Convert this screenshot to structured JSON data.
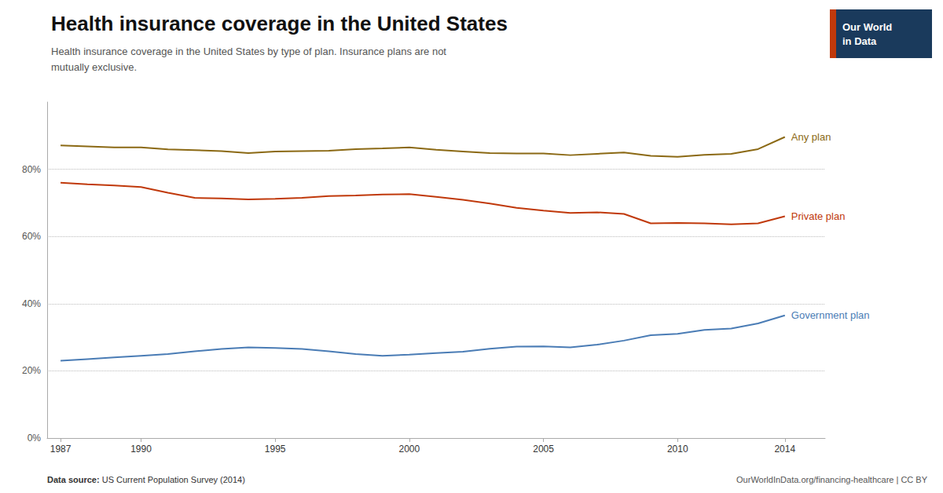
{
  "chart_data": {
    "type": "line",
    "title": "Health insurance coverage in the United States",
    "subtitle": "Health insurance coverage in the United States by type of plan. Insurance plans are not\nmutually exclusive.",
    "annotations": [
      "Data source: US Current Population Survey (2014)",
      "OurWorldInData.org/financing-healthcare | CC BY",
      "Our World\nin Data"
    ],
    "x": [
      1987,
      1988,
      1989,
      1990,
      1991,
      1992,
      1993,
      1994,
      1995,
      1996,
      1997,
      1998,
      1999,
      2000,
      2001,
      2002,
      2003,
      2004,
      2005,
      2006,
      2007,
      2008,
      2009,
      2010,
      2011,
      2012,
      2013,
      2014
    ],
    "series": [
      {
        "name": "Any plan",
        "color": "#8B6914",
        "values": [
          87.1,
          86.8,
          86.5,
          86.5,
          85.9,
          85.7,
          85.4,
          84.8,
          85.3,
          85.4,
          85.5,
          86.0,
          86.2,
          86.5,
          85.8,
          85.3,
          84.8,
          84.7,
          84.7,
          84.2,
          84.6,
          85.0,
          84.0,
          83.7,
          84.3,
          84.6,
          86.0,
          89.6
        ]
      },
      {
        "name": "Private plan",
        "color": "#C0390B",
        "values": [
          76.0,
          75.5,
          75.2,
          74.7,
          73.0,
          71.5,
          71.3,
          71.0,
          71.2,
          71.5,
          72.0,
          72.2,
          72.5,
          72.6,
          71.8,
          70.9,
          69.8,
          68.5,
          67.7,
          67.0,
          67.2,
          66.7,
          63.9,
          64.0,
          63.9,
          63.6,
          63.9,
          66.0
        ]
      },
      {
        "name": "Government plan",
        "color": "#4A7CB5",
        "values": [
          23.0,
          23.5,
          24.0,
          24.5,
          25.0,
          25.8,
          26.5,
          27.0,
          26.8,
          26.5,
          25.8,
          25.0,
          24.5,
          24.8,
          25.3,
          25.7,
          26.6,
          27.2,
          27.3,
          27.0,
          27.8,
          29.0,
          30.6,
          31.0,
          32.2,
          32.6,
          34.1,
          36.5
        ]
      }
    ],
    "xlim": [
      1986.5,
      2015.5
    ],
    "xticks": [
      1987,
      1990,
      1995,
      2000,
      2005,
      2010,
      2014
    ],
    "ylim": [
      0,
      100
    ],
    "yticks": [
      {
        "value": 0,
        "label": "0%"
      },
      {
        "value": 20,
        "label": "20%"
      },
      {
        "value": 40,
        "label": "40%"
      },
      {
        "value": 60,
        "label": "60%"
      },
      {
        "value": 80,
        "label": "80%"
      }
    ],
    "grid": true
  }
}
